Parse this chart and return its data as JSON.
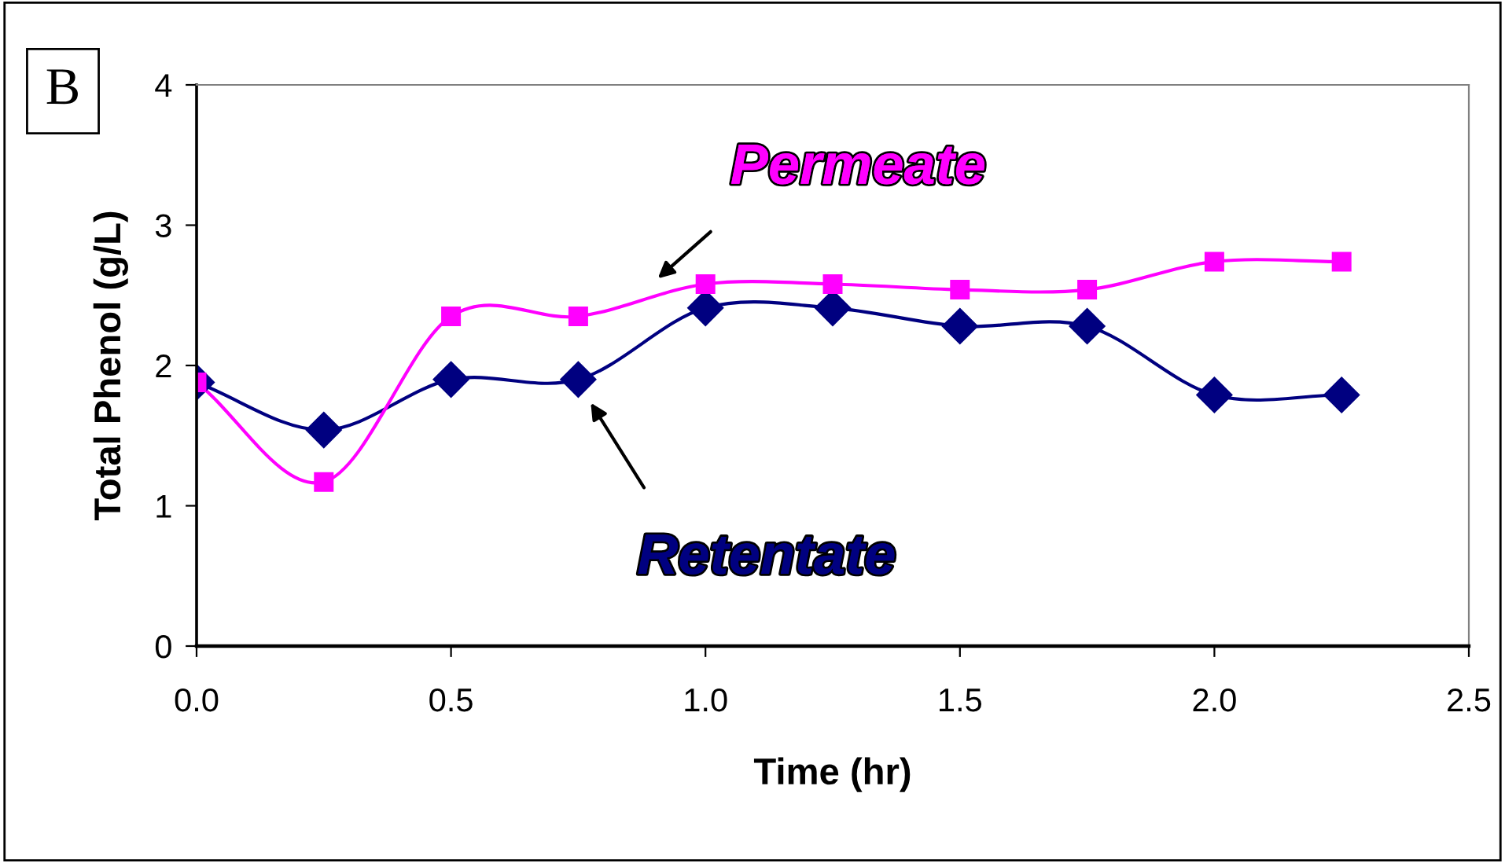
{
  "chart_data": {
    "type": "line",
    "xlabel": "Time (hr)",
    "ylabel": "Total Phenol (g/L)",
    "x": [
      0,
      0.25,
      0.5,
      0.75,
      1.0,
      1.25,
      1.5,
      1.75,
      2.0,
      2.25
    ],
    "series": [
      {
        "name": "Retentate",
        "color": "#000080",
        "marker": "diamond",
        "values": [
          1.88,
          1.54,
          1.9,
          1.9,
          2.41,
          2.41,
          2.28,
          2.28,
          1.79,
          1.79
        ]
      },
      {
        "name": "Permeate",
        "color": "#ff00ff",
        "marker": "square",
        "values": [
          1.88,
          1.17,
          2.35,
          2.35,
          2.58,
          2.58,
          2.54,
          2.54,
          2.74,
          2.74
        ]
      }
    ],
    "xlim": [
      0,
      2.5
    ],
    "ylim": [
      0,
      4
    ],
    "xticks": [
      {
        "value": 0,
        "label": "0.0"
      },
      0.5,
      {
        "value": 1,
        "label": "1.0"
      },
      1.5,
      {
        "value": 2,
        "label": "2.0"
      },
      2.5
    ],
    "yticks": [
      0,
      1,
      2,
      3,
      4
    ],
    "grid": false,
    "legend": false,
    "annotations": [
      "B"
    ]
  }
}
